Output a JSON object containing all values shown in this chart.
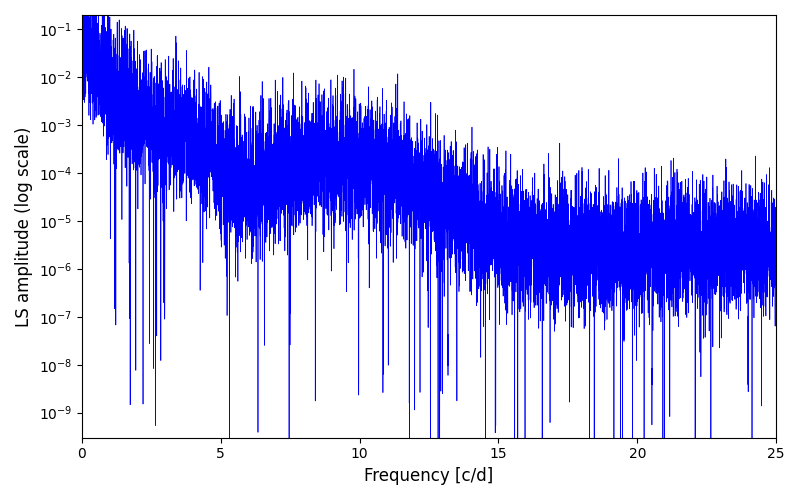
{
  "xlabel": "Frequency [c/d]",
  "ylabel": "LS amplitude (log scale)",
  "xlim": [
    0,
    25
  ],
  "ylim_low": 3e-10,
  "ylim_high": 0.2,
  "line_color": "#0000ff",
  "line_width": 0.5,
  "figsize": [
    8.0,
    5.0
  ],
  "dpi": 100,
  "freq_max": 25.0,
  "num_points": 10000,
  "seed": 137
}
